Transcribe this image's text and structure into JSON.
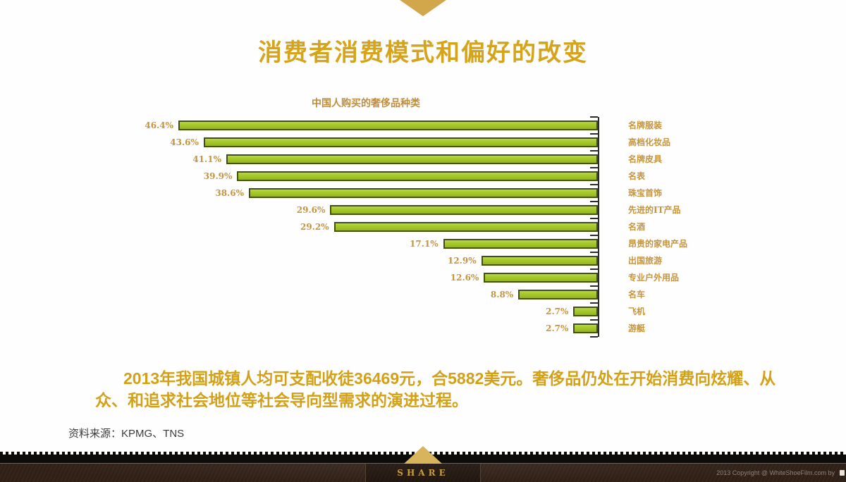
{
  "slide": {
    "title": "消费者消费模式和偏好的改变",
    "paragraph": "2013年我国城镇人均可支配收徒36469元，合5882美元。奢侈品仍处在开始消费向炫耀、从众、和追求社会地位等社会导向型需求的演进过程。",
    "source": "资料来源：KPMG、TNS"
  },
  "chart_data": {
    "type": "bar",
    "orientation": "horizontal-right-aligned",
    "title": "中国人购买的奢侈品种类",
    "categories": [
      "名牌服装",
      "高档化妆品",
      "名牌皮具",
      "名表",
      "珠宝首饰",
      "先进的IT产品",
      "名酒",
      "昂贵的家电产品",
      "出国旅游",
      "专业户外用品",
      "名车",
      "飞机",
      "游艇"
    ],
    "values": [
      46.4,
      43.6,
      41.1,
      39.9,
      38.6,
      29.6,
      29.2,
      17.1,
      12.9,
      12.6,
      8.8,
      2.7,
      2.7
    ],
    "value_labels": [
      "46.4%",
      "43.6%",
      "41.1%",
      "39.9%",
      "38.6%",
      "29.6%",
      "29.2%",
      "17.1%",
      "12.9%",
      "12.6%",
      "8.8%",
      "2.7%",
      "2.7%"
    ],
    "xlim": [
      0,
      46.4
    ],
    "grid": false,
    "legend": "none",
    "bar_color": "#a6c72c",
    "bar_border_color": "#46500d",
    "axis_color": "#2b2b2b",
    "label_color": "#c5943c"
  },
  "footer": {
    "share_label": "SHARE",
    "copyright": "2013 Copyright @ WhiteShoeFilm.com by"
  },
  "colors": {
    "title_gold": "#d5a41a",
    "paragraph_gold": "#d2a117",
    "chart_label_gold": "#c5943c",
    "accent_triangle_gold": "#d2a64b",
    "footer_brown": "#35241a",
    "source_text": "#3b3b3b"
  }
}
